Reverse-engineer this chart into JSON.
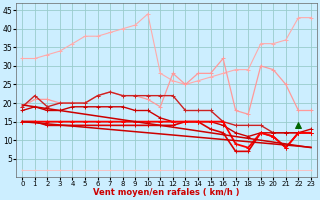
{
  "background_color": "#cceeff",
  "grid_color": "#99cccc",
  "xlabel": "Vent moyen/en rafales ( km/h )",
  "x_ticks": [
    0,
    1,
    2,
    3,
    4,
    5,
    6,
    7,
    8,
    9,
    10,
    11,
    12,
    13,
    14,
    15,
    16,
    17,
    18,
    19,
    20,
    21,
    22,
    23
  ],
  "ylim": [
    0,
    47
  ],
  "yticks": [
    5,
    10,
    15,
    20,
    25,
    30,
    35,
    40,
    45
  ],
  "series": [
    {
      "name": "rafales_max_envelope",
      "color": "#ffaaaa",
      "marker": "+",
      "linewidth": 0.8,
      "markersize": 2.5,
      "y": [
        32,
        32,
        33,
        34,
        36,
        38,
        38,
        39,
        40,
        41,
        44,
        28,
        26,
        25,
        26,
        27,
        28,
        29,
        29,
        36,
        36,
        37,
        43,
        43
      ]
    },
    {
      "name": "vent_rafales_upper",
      "color": "#ff9999",
      "marker": "+",
      "linewidth": 0.9,
      "markersize": 2.5,
      "y": [
        19,
        21,
        21,
        20,
        20,
        20,
        22,
        23,
        22,
        22,
        21,
        19,
        28,
        25,
        28,
        28,
        32,
        18,
        17,
        30,
        29,
        25,
        18,
        18
      ]
    },
    {
      "name": "vent_moyen_upper",
      "color": "#cc2222",
      "marker": "+",
      "linewidth": 1.0,
      "markersize": 2.5,
      "y": [
        19,
        22,
        19,
        20,
        20,
        20,
        22,
        23,
        22,
        22,
        22,
        22,
        22,
        18,
        18,
        18,
        15,
        14,
        14,
        14,
        12,
        12,
        12,
        12
      ]
    },
    {
      "name": "vent_moyen_mid",
      "color": "#cc0000",
      "marker": "+",
      "linewidth": 1.0,
      "markersize": 2.5,
      "y": [
        18,
        19,
        18,
        18,
        19,
        19,
        19,
        19,
        19,
        18,
        18,
        16,
        15,
        15,
        15,
        15,
        14,
        12,
        11,
        12,
        12,
        12,
        12,
        13
      ]
    },
    {
      "name": "vent_moyen_lower",
      "color": "#dd0000",
      "marker": "+",
      "linewidth": 1.2,
      "markersize": 2.5,
      "y": [
        15,
        15,
        14,
        14,
        14,
        14,
        14,
        14,
        14,
        14,
        14,
        14,
        14,
        15,
        15,
        13,
        12,
        7,
        7,
        12,
        11,
        8,
        12,
        12
      ]
    },
    {
      "name": "vent_inst",
      "color": "#ff0000",
      "marker": "+",
      "linewidth": 1.3,
      "markersize": 2.5,
      "y": [
        15,
        15,
        15,
        15,
        15,
        15,
        15,
        15,
        15,
        15,
        15,
        15,
        15,
        15,
        15,
        15,
        15,
        9,
        8,
        12,
        11,
        8,
        12,
        12
      ]
    },
    {
      "name": "constant_low",
      "color": "#ffbbbb",
      "marker": "+",
      "linewidth": 0.6,
      "markersize": 2,
      "y": [
        2,
        2,
        2,
        2,
        2,
        2,
        2,
        2,
        2,
        2,
        2,
        2,
        2,
        2,
        2,
        2,
        2,
        2,
        2,
        2,
        2,
        2,
        2,
        2
      ]
    },
    {
      "name": "trend_line1",
      "color": "#cc0000",
      "marker": null,
      "linewidth": 1.1,
      "markersize": 0,
      "y": [
        19.5,
        19.0,
        18.5,
        18.0,
        17.5,
        17.0,
        16.5,
        16.0,
        15.5,
        15.0,
        14.5,
        14.0,
        13.5,
        13.0,
        12.5,
        12.0,
        11.5,
        11.0,
        10.5,
        10.0,
        9.5,
        9.0,
        8.5,
        8.0
      ]
    },
    {
      "name": "trend_line2",
      "color": "#cc0000",
      "marker": null,
      "linewidth": 1.1,
      "markersize": 0,
      "y": [
        15.0,
        14.7,
        14.4,
        14.1,
        13.8,
        13.5,
        13.2,
        12.9,
        12.6,
        12.3,
        12.0,
        11.7,
        11.4,
        11.1,
        10.8,
        10.5,
        10.2,
        9.9,
        9.6,
        9.3,
        9.0,
        8.7,
        8.4,
        8.1
      ]
    }
  ],
  "triangle_x": [
    22
  ],
  "triangle_y": [
    14
  ],
  "triangle_color": "#006600"
}
